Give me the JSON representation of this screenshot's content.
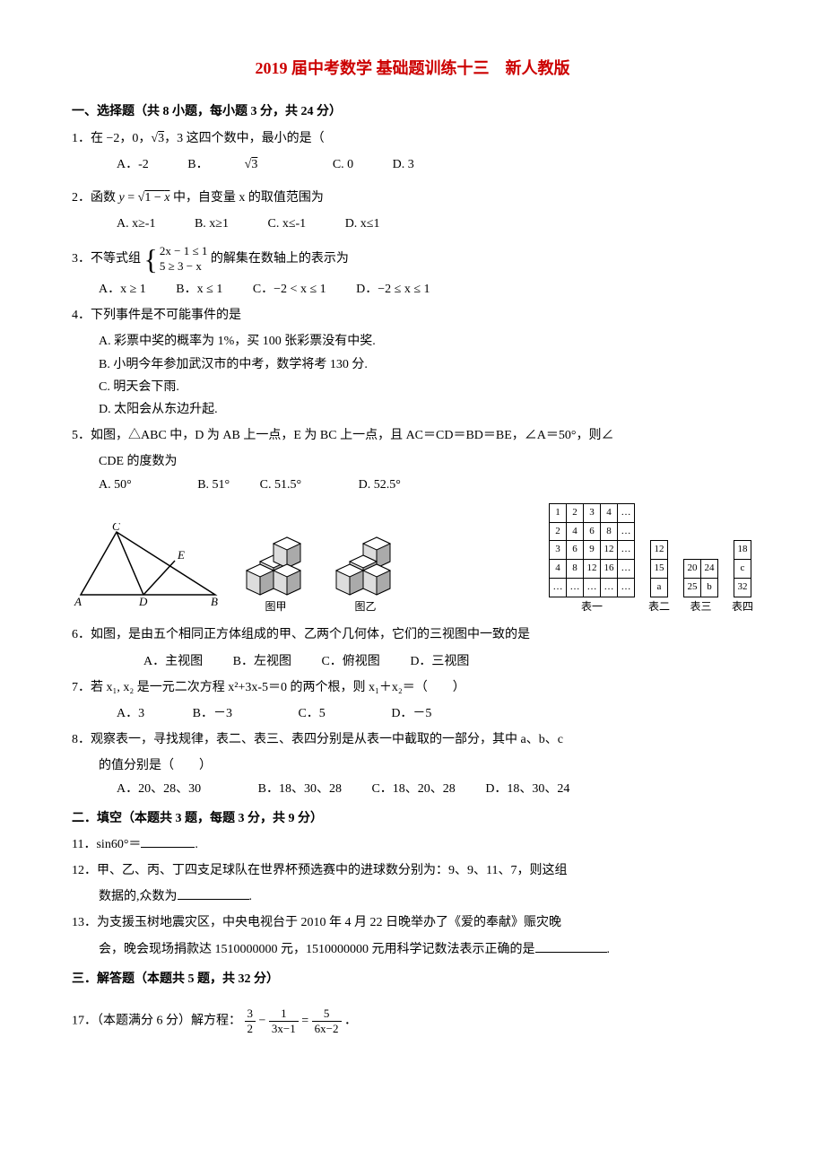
{
  "title_color": "#cc0000",
  "text_color": "#000000",
  "bg_color": "#ffffff",
  "title": "2019 届中考数学 基础题训练十三　新人教版",
  "sec1_header": "一、选择题（共 8 小题，每小题 3 分，共 24 分）",
  "q1": {
    "text_a": "1．在 −2，0，",
    "rad": "√3",
    "text_b": "，3 这四个数中，最小的是（",
    "optA": "A．-2",
    "optB_pre": "B．",
    "optB_rad": "√3",
    "optC": "C. 0",
    "optD": "D.  3"
  },
  "q2": {
    "text_a": "2．函数 ",
    "func": "y = √(1−x)",
    "text_b": " 中，自变量 x 的取值范围为",
    "optA": "A. x≥-1",
    "optB": "B. x≥1",
    "optC": "C. x≤-1",
    "optD": "D. x≤1"
  },
  "q3": {
    "text_a": "3．不等式组",
    "line1": "2x − 1 ≤ 1",
    "line2": "5 ≥ 3 − x",
    "text_b": "的解集在数轴上的表示为",
    "optA": "A．x ≥ 1",
    "optB": "B．x ≤ 1",
    "optC": "C．−2 < x ≤ 1",
    "optD": "D．−2 ≤ x ≤ 1"
  },
  "q4": {
    "text": "4．下列事件是不可能事件的是",
    "A": "A. 彩票中奖的概率为 1%，买 100 张彩票没有中奖.",
    "B": "B. 小明今年参加武汉市的中考，数学将考 130 分.",
    "C": "C. 明天会下雨.",
    "D": "D. 太阳会从东边升起."
  },
  "q5": {
    "line1": "5．如图，△ABC 中，D 为 AB 上一点，E 为 BC 上一点，且 AC＝CD＝BD＝BE，∠A＝50°，则∠",
    "line2": "CDE 的度数为",
    "optA": "A. 50°",
    "optB": "B. 51°",
    "optC": "C. 51.5°",
    "optD": "D. 52.5°"
  },
  "fig_captions": {
    "jia": "图甲",
    "yi": "图乙",
    "t1": "表一",
    "t2": "表二",
    "t3": "表三",
    "t4": "表四"
  },
  "table1": {
    "rows": [
      [
        "1",
        "2",
        "3",
        "4",
        "…"
      ],
      [
        "2",
        "4",
        "6",
        "8",
        "…"
      ],
      [
        "3",
        "6",
        "9",
        "12",
        "…"
      ],
      [
        "4",
        "8",
        "12",
        "16",
        "…"
      ],
      [
        "…",
        "…",
        "…",
        "…",
        "…"
      ]
    ]
  },
  "table2": {
    "rows": [
      [
        "12"
      ],
      [
        "15"
      ],
      [
        "a"
      ]
    ]
  },
  "table3": {
    "rows": [
      [
        "20",
        "24"
      ],
      [
        "25",
        "b"
      ]
    ]
  },
  "table4": {
    "rows": [
      [
        "18"
      ],
      [
        "c"
      ],
      [
        "32"
      ]
    ]
  },
  "q6": {
    "text": "6．如图，是由五个相同正方体组成的甲、乙两个几何体，它们的三视图中一致的是",
    "optA": "A．主视图",
    "optB": "B．左视图",
    "optC": "C．俯视图",
    "optD": "D．三视图"
  },
  "q7": {
    "text": "7．若 x₁, x₂ 是一元二次方程 x²+3x-5＝0 的两个根，则 x₁＋x₂＝（　　）",
    "optA": "A．3",
    "optB": "B．－3",
    "optC": "C．5",
    "optD": "D．－5"
  },
  "q8": {
    "text1": "8．观察表一，寻找规律，表二、表三、表四分别是从表一中截取的一部分，其中 a、b、c",
    "text2": "的值分别是（　　）",
    "optA": "A．20、28、30",
    "optB": "B．18、30、28",
    "optC": "C．18、20、28",
    "optD": "D．18、30、24"
  },
  "sec2_header": "二．填空（本题共 3 题，每题 3 分，共 9 分）",
  "q11": {
    "text_a": "11．sin60°＝",
    "text_b": "."
  },
  "q12": {
    "text1": "12．甲、乙、丙、丁四支足球队在世界杯预选赛中的进球数分别为：9、9、11、7，则这组",
    "text2": "数据的,众数为",
    "text3": "."
  },
  "q13": {
    "text1": "13．为支援玉树地震灾区，中央电视台于 2010 年 4 月 22 日晚举办了《爱的奉献》赈灾晚",
    "text2": "会，晚会现场捐款达 1510000000 元，1510000000 元用科学记数法表示正确的是",
    "text3": "."
  },
  "sec3_header": "三．解答题（本题共 5 题，共 32 分）",
  "q17": {
    "text_a": "17．（本题满分 6 分）解方程：",
    "frac1_num": "3",
    "frac1_den": "2",
    "minus": " − ",
    "frac2_num": "1",
    "frac2_den": "3x−1",
    "eq": " = ",
    "frac3_num": "5",
    "frac3_den": "6x−2",
    "end": "．"
  },
  "triangle_svg": {
    "stroke": "#000000",
    "A": "A",
    "B": "B",
    "C": "C",
    "D": "D",
    "E": "E"
  },
  "cube_svg": {
    "stroke": "#000000",
    "fill_light": "#ffffff",
    "fill_mid": "#cccccc",
    "fill_dark": "#888888"
  }
}
